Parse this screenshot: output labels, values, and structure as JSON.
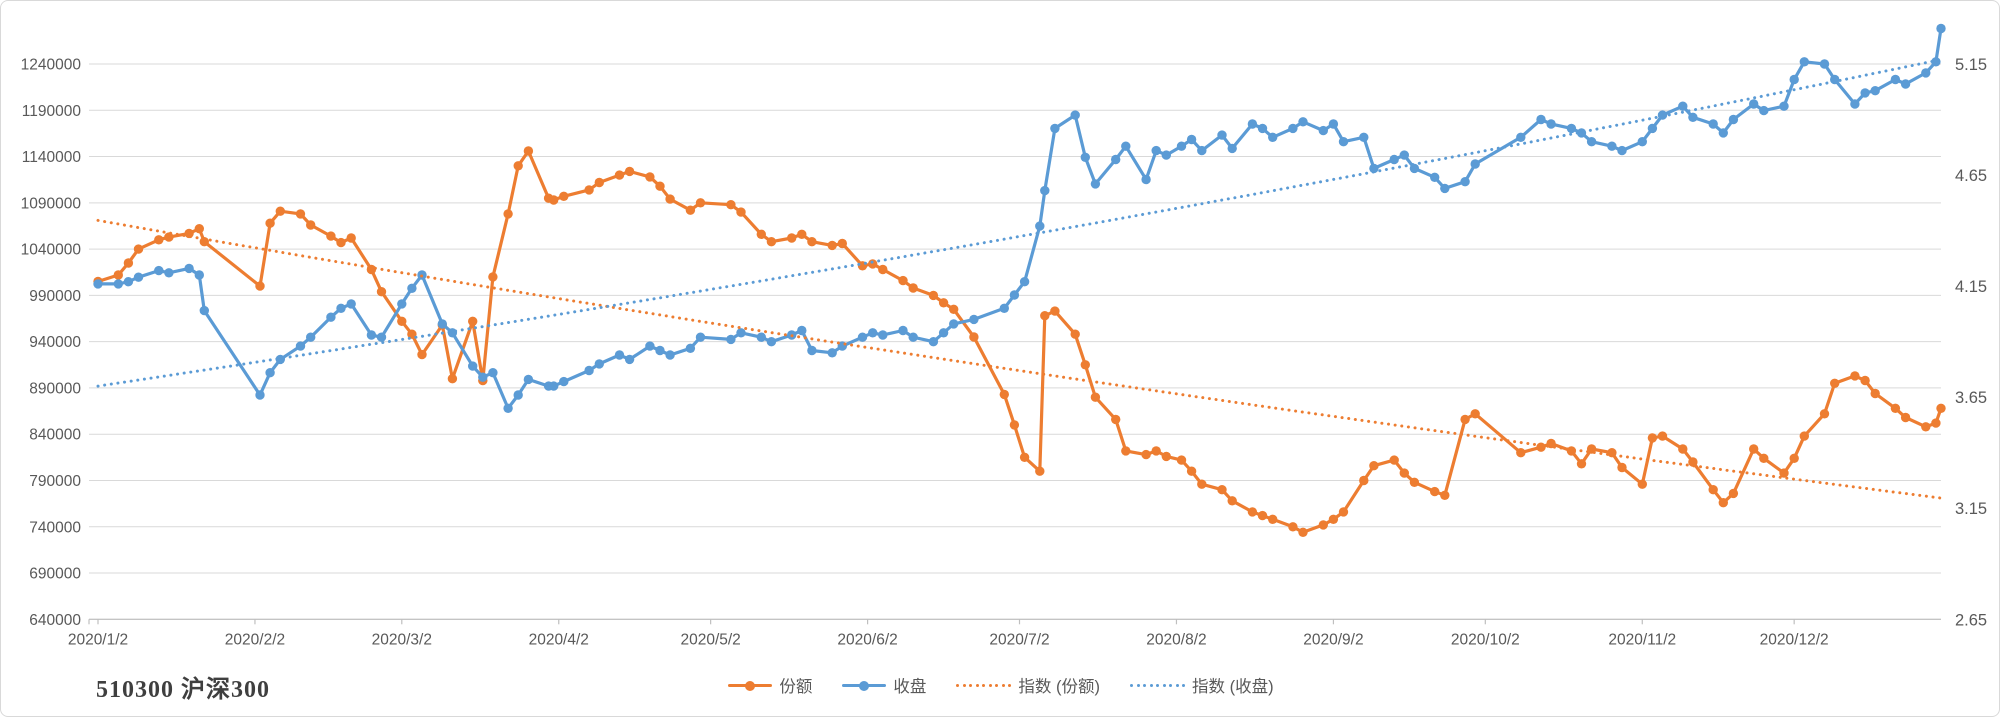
{
  "window": {
    "background": "#ffffff",
    "border_color": "#d9d9d9"
  },
  "title": "510300 沪深300",
  "colors": {
    "shares_orange": "#ED7D31",
    "close_blue": "#5B9BD5",
    "gridline": "#D9D9D9",
    "axis_line": "#BFBFBF",
    "axis_text": "#595959",
    "title_text": "#3F3F3F"
  },
  "legend": {
    "items": [
      {
        "label": "份额",
        "style": "line-marker",
        "color": "#ED7D31"
      },
      {
        "label": "收盘",
        "style": "line-marker",
        "color": "#5B9BD5"
      },
      {
        "label": "指数 (份额)",
        "style": "dotted",
        "color": "#ED7D31"
      },
      {
        "label": "指数 (收盘)",
        "style": "dotted",
        "color": "#5B9BD5"
      }
    ]
  },
  "chart_data": {
    "type": "line",
    "title": "510300 沪深300",
    "grid": true,
    "legend_position": "bottom",
    "x_axis": {
      "kind": "date",
      "year": 2020,
      "tick_labels": [
        "2020/1/2",
        "2020/2/2",
        "2020/3/2",
        "2020/4/2",
        "2020/5/2",
        "2020/6/2",
        "2020/7/2",
        "2020/8/2",
        "2020/9/2",
        "2020/10/2",
        "2020/11/2",
        "2020/12/2"
      ],
      "range_days": [
        "1-2",
        "12-31"
      ]
    },
    "left_axis": {
      "min": 640000,
      "max": 1240000,
      "step": 50000,
      "labels": [
        1240000,
        1190000,
        1140000,
        1090000,
        1040000,
        990000,
        940000,
        890000,
        840000,
        790000,
        740000,
        690000,
        640000
      ]
    },
    "right_axis": {
      "min": 2.65,
      "max": 5.15,
      "step": 0.5,
      "labels": [
        5.15,
        4.65,
        4.15,
        3.65,
        3.15,
        2.65
      ]
    },
    "dates": [
      "1-2",
      "1-6",
      "1-8",
      "1-10",
      "1-14",
      "1-16",
      "1-20",
      "1-22",
      "1-23",
      "2-3",
      "2-5",
      "2-7",
      "2-11",
      "2-13",
      "2-17",
      "2-19",
      "2-21",
      "2-25",
      "2-27",
      "3-2",
      "3-4",
      "3-6",
      "3-10",
      "3-12",
      "3-16",
      "3-18",
      "3-20",
      "3-23",
      "3-25",
      "3-27",
      "3-31",
      "4-1",
      "4-3",
      "4-8",
      "4-10",
      "4-14",
      "4-16",
      "4-20",
      "4-22",
      "4-24",
      "4-28",
      "4-30",
      "5-6",
      "5-8",
      "5-12",
      "5-14",
      "5-18",
      "5-20",
      "5-22",
      "5-26",
      "5-28",
      "6-1",
      "6-3",
      "6-5",
      "6-9",
      "6-11",
      "6-15",
      "6-17",
      "6-19",
      "6-23",
      "6-29",
      "7-1",
      "7-3",
      "7-6",
      "7-7",
      "7-9",
      "7-13",
      "7-15",
      "7-17",
      "7-21",
      "7-23",
      "7-27",
      "7-29",
      "7-31",
      "8-3",
      "8-5",
      "8-7",
      "8-11",
      "8-13",
      "8-17",
      "8-19",
      "8-21",
      "8-25",
      "8-27",
      "8-31",
      "9-2",
      "9-4",
      "9-8",
      "9-10",
      "9-14",
      "9-16",
      "9-18",
      "9-22",
      "9-24",
      "9-28",
      "9-30",
      "10-9",
      "10-13",
      "10-15",
      "10-19",
      "10-21",
      "10-23",
      "10-27",
      "10-29",
      "11-2",
      "11-4",
      "11-6",
      "11-10",
      "11-12",
      "11-16",
      "11-18",
      "11-20",
      "11-24",
      "11-26",
      "11-30",
      "12-2",
      "12-4",
      "12-8",
      "12-10",
      "12-14",
      "12-16",
      "12-18",
      "12-22",
      "12-24",
      "12-28",
      "12-30",
      "12-31"
    ],
    "series": [
      {
        "name": "份额",
        "axis": "left",
        "style": "line-marker",
        "color": "#ED7D31",
        "values": [
          1005000,
          1012000,
          1025000,
          1040000,
          1050000,
          1053000,
          1057000,
          1062000,
          1048000,
          1000000,
          1068000,
          1081000,
          1078000,
          1066000,
          1054000,
          1047000,
          1052000,
          1018000,
          994000,
          962000,
          948000,
          926000,
          958000,
          900000,
          962000,
          898000,
          1010000,
          1078000,
          1130000,
          1146000,
          1095000,
          1093000,
          1097000,
          1104000,
          1112000,
          1120000,
          1124000,
          1118000,
          1108000,
          1094000,
          1082000,
          1090000,
          1088000,
          1080000,
          1056000,
          1048000,
          1052000,
          1056000,
          1048000,
          1044000,
          1046000,
          1022000,
          1024000,
          1018000,
          1006000,
          998000,
          990000,
          982000,
          975000,
          945000,
          883000,
          850000,
          815000,
          800000,
          968000,
          973000,
          948000,
          915000,
          880000,
          856000,
          822000,
          818000,
          822000,
          816000,
          812000,
          800000,
          786000,
          780000,
          768000,
          756000,
          752000,
          748000,
          740000,
          734000,
          742000,
          748000,
          756000,
          790000,
          806000,
          812000,
          798000,
          788000,
          778000,
          774000,
          856000,
          862000,
          820000,
          826000,
          830000,
          822000,
          808000,
          824000,
          820000,
          804000,
          786000,
          836000,
          838000,
          824000,
          810000,
          780000,
          766000,
          776000,
          824000,
          814000,
          798000,
          814000,
          838000,
          862000,
          895000,
          903000,
          898000,
          884000,
          868000,
          858000,
          848000,
          852000,
          868000
        ]
      },
      {
        "name": "收盘",
        "axis": "right",
        "style": "line-marker",
        "color": "#5B9BD5",
        "values": [
          4.16,
          4.16,
          4.17,
          4.19,
          4.22,
          4.21,
          4.23,
          4.2,
          4.04,
          3.66,
          3.76,
          3.82,
          3.88,
          3.92,
          4.01,
          4.05,
          4.07,
          3.93,
          3.92,
          4.07,
          4.14,
          4.2,
          3.98,
          3.94,
          3.79,
          3.74,
          3.76,
          3.6,
          3.66,
          3.73,
          3.7,
          3.7,
          3.72,
          3.77,
          3.8,
          3.84,
          3.82,
          3.88,
          3.86,
          3.84,
          3.87,
          3.92,
          3.91,
          3.94,
          3.92,
          3.9,
          3.93,
          3.95,
          3.86,
          3.85,
          3.88,
          3.92,
          3.94,
          3.93,
          3.95,
          3.92,
          3.9,
          3.94,
          3.98,
          4.0,
          4.05,
          4.11,
          4.17,
          4.42,
          4.58,
          4.86,
          4.92,
          4.73,
          4.61,
          4.72,
          4.78,
          4.63,
          4.76,
          4.74,
          4.78,
          4.81,
          4.76,
          4.83,
          4.77,
          4.88,
          4.86,
          4.82,
          4.86,
          4.89,
          4.85,
          4.88,
          4.8,
          4.82,
          4.68,
          4.72,
          4.74,
          4.68,
          4.64,
          4.59,
          4.62,
          4.7,
          4.82,
          4.9,
          4.88,
          4.86,
          4.84,
          4.8,
          4.78,
          4.76,
          4.8,
          4.86,
          4.92,
          4.96,
          4.91,
          4.88,
          4.84,
          4.9,
          4.97,
          4.94,
          4.96,
          5.08,
          5.16,
          5.15,
          5.08,
          4.97,
          5.02,
          5.03,
          5.08,
          5.06,
          5.11,
          5.16,
          5.31
        ]
      },
      {
        "name": "指数 (份额)",
        "axis": "left",
        "style": "dotted-trend",
        "color": "#ED7D31",
        "trend": {
          "kind": "exponential",
          "start": 1071000,
          "end": 771000
        }
      },
      {
        "name": "指数 (收盘)",
        "axis": "right",
        "style": "dotted-trend",
        "color": "#5B9BD5",
        "trend": {
          "kind": "exponential",
          "start": 3.7,
          "end": 5.17
        }
      }
    ]
  }
}
